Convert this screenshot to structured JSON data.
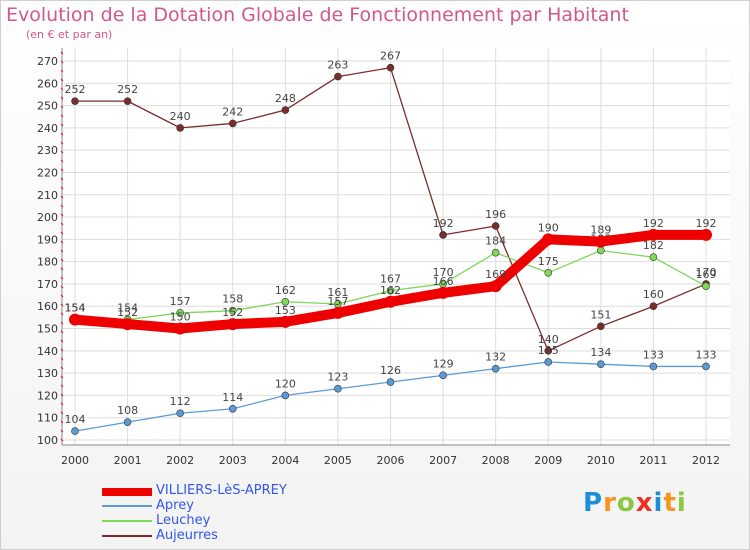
{
  "colors": {
    "title": "#d2578c",
    "axis_text": "#333333",
    "grid": "#dddddd",
    "VILLIERS-LèS-APREY": "#ee0000",
    "Aprey": "#5b9bd5",
    "Leuchey": "#7ed957",
    "Aujeurres": "#7b2c2c"
  },
  "logo": {
    "letters": [
      "P",
      "r",
      "o",
      "x",
      "i",
      "t",
      "i"
    ],
    "colors": [
      "#1a8fd8",
      "#f7941d",
      "#8dc63f",
      "#ee3124",
      "#1a8fd8",
      "#f7941d",
      "#8dc63f"
    ]
  },
  "chart_data": {
    "type": "line",
    "title": "Evolution de la Dotation Globale de Fonctionnement par Habitant",
    "subtitle": "(en € et par an)",
    "x": [
      2000,
      2001,
      2002,
      2003,
      2004,
      2005,
      2006,
      2007,
      2008,
      2009,
      2010,
      2011,
      2012
    ],
    "ylim": [
      100,
      270
    ],
    "yticks": [
      100,
      110,
      120,
      130,
      140,
      150,
      160,
      170,
      180,
      190,
      200,
      210,
      220,
      230,
      240,
      250,
      260,
      270
    ],
    "grid": true,
    "legend_position": "bottom-left",
    "series": [
      {
        "name": "Aujeurres",
        "values": [
          252,
          252,
          240,
          242,
          248,
          263,
          267,
          192,
          196,
          140,
          151,
          160,
          170
        ]
      },
      {
        "name": "Leuchey",
        "values": [
          154,
          154,
          157,
          158,
          162,
          161,
          167,
          170,
          184,
          175,
          185,
          182,
          169
        ]
      },
      {
        "name": "Aprey",
        "values": [
          104,
          108,
          112,
          114,
          120,
          123,
          126,
          129,
          132,
          135,
          134,
          133,
          133
        ]
      },
      {
        "name": "VILLIERS-LèS-APREY",
        "values": [
          154,
          152,
          150,
          152,
          153,
          157,
          162,
          166,
          169,
          190,
          189,
          192,
          192
        ]
      }
    ],
    "legend": [
      "VILLIERS-LèS-APREY",
      "Aprey",
      "Leuchey",
      "Aujeurres"
    ]
  }
}
